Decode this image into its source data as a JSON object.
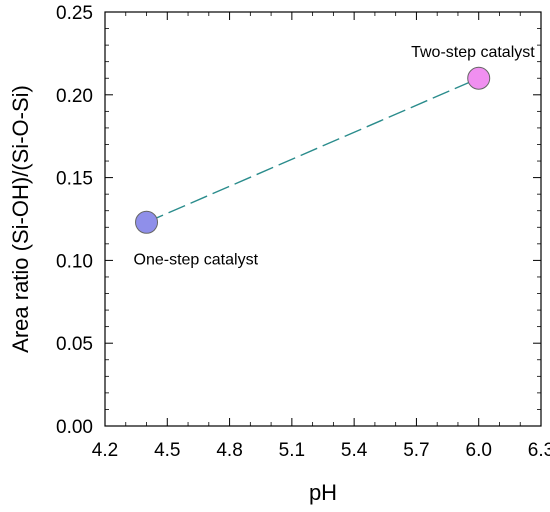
{
  "chart_data": {
    "type": "scatter",
    "title": "",
    "xlabel": "pH",
    "ylabel": "Area ratio (Si-OH)/(Si-O-Si)",
    "xlim": [
      4.2,
      6.3
    ],
    "ylim": [
      0,
      0.25
    ],
    "xticks": [
      "4.2",
      "4.5",
      "4.8",
      "5.1",
      "5.4",
      "5.7",
      "6.0",
      "6.3"
    ],
    "yticks": [
      "0.00",
      "0.05",
      "0.10",
      "0.15",
      "0.20",
      "0.25"
    ],
    "grid": false,
    "legend": "none",
    "points": [
      {
        "x": 4.4,
        "y": 0.123,
        "label": "One-step catalyst",
        "color": "#8f8fea"
      },
      {
        "x": 6.0,
        "y": 0.21,
        "label": "Two-step catalyst",
        "color": "#f08ff0"
      }
    ],
    "trend_line": {
      "style": "dashed",
      "color": "#2a8c8c"
    }
  }
}
